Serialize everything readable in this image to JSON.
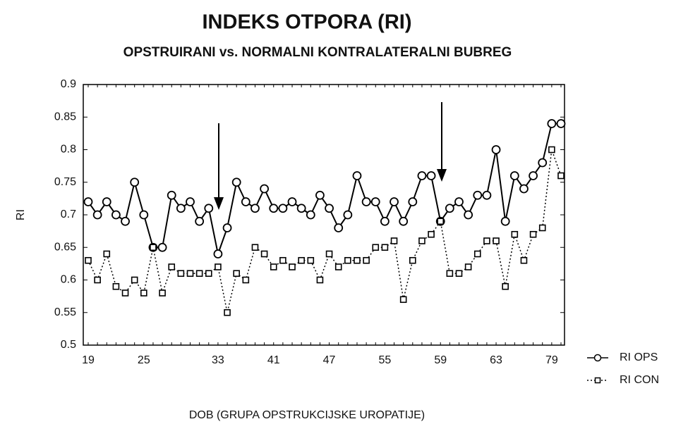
{
  "chart_data": {
    "type": "line",
    "title": "INDEKS OTPORA (RI)",
    "subtitle": "OPSTRUIRANI vs. NORMALNI KONTRALATERALNI BUBREG",
    "y_label": "RI",
    "x_label": "DOB (GRUPA OPSTRUKCIJSKE UROPATIJE)",
    "categories": [
      "19",
      null,
      null,
      null,
      null,
      null,
      "25",
      null,
      null,
      null,
      null,
      null,
      null,
      null,
      "33",
      null,
      null,
      null,
      null,
      null,
      "41",
      null,
      null,
      null,
      null,
      null,
      "47",
      null,
      null,
      null,
      null,
      null,
      "55",
      null,
      null,
      null,
      null,
      null,
      "59",
      null,
      null,
      null,
      null,
      null,
      "63",
      null,
      null,
      null,
      null,
      null,
      "79",
      null
    ],
    "series": [
      {
        "name": "RI OPS",
        "color": "#000000",
        "values": [
          0.72,
          0.7,
          0.72,
          0.7,
          0.69,
          0.75,
          0.7,
          0.65,
          0.65,
          0.73,
          0.71,
          0.72,
          0.69,
          0.71,
          0.64,
          0.68,
          0.75,
          0.72,
          0.71,
          0.74,
          0.71,
          0.71,
          0.72,
          0.71,
          0.7,
          0.73,
          0.71,
          0.68,
          0.7,
          0.76,
          0.72,
          0.72,
          0.69,
          0.72,
          0.69,
          0.72,
          0.76,
          0.76,
          0.69,
          0.71,
          0.72,
          0.7,
          0.73,
          0.73,
          0.8,
          0.69,
          0.76,
          0.74,
          0.76,
          0.78,
          0.84,
          0.84
        ]
      },
      {
        "name": "RI CON",
        "color": "#000000",
        "values": [
          0.63,
          0.6,
          0.64,
          0.59,
          0.58,
          0.6,
          0.58,
          0.65,
          0.58,
          0.62,
          0.61,
          0.61,
          0.61,
          0.61,
          0.62,
          0.55,
          0.61,
          0.6,
          0.65,
          0.64,
          0.62,
          0.63,
          0.62,
          0.63,
          0.63,
          0.6,
          0.64,
          0.62,
          0.63,
          0.63,
          0.63,
          0.65,
          0.65,
          0.66,
          0.57,
          0.63,
          0.66,
          0.67,
          0.69,
          0.61,
          0.61,
          0.62,
          0.64,
          0.66,
          0.66,
          0.59,
          0.67,
          0.63,
          0.67,
          0.68,
          0.8,
          0.76
        ]
      }
    ],
    "ylim": [
      0.5,
      0.9
    ],
    "yticks": [
      0.5,
      0.55,
      0.6,
      0.65,
      0.7,
      0.75,
      0.8,
      0.85,
      0.9
    ]
  }
}
